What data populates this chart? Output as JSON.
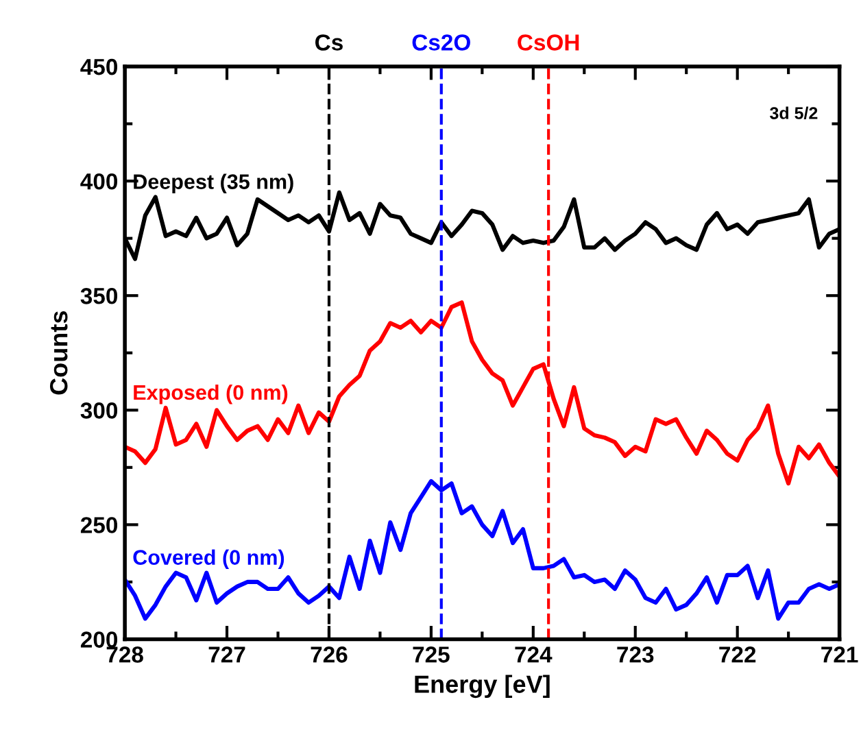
{
  "chart_data": {
    "type": "line",
    "xlabel": "Energy [eV]",
    "ylabel": "Counts",
    "x": [
      728.0,
      727.9,
      727.8,
      727.7,
      727.6,
      727.5,
      727.4,
      727.3,
      727.2,
      727.1,
      727.0,
      726.9,
      726.8,
      726.7,
      726.6,
      726.5,
      726.4,
      726.3,
      726.2,
      726.1,
      726.0,
      725.9,
      725.8,
      725.7,
      725.6,
      725.5,
      725.4,
      725.3,
      725.2,
      725.1,
      725.0,
      724.9,
      724.8,
      724.7,
      724.6,
      724.5,
      724.4,
      724.3,
      724.2,
      724.1,
      724.0,
      723.9,
      723.8,
      723.7,
      723.6,
      723.5,
      723.4,
      723.3,
      723.2,
      723.1,
      723.0,
      722.9,
      722.8,
      722.7,
      722.6,
      722.5,
      722.4,
      722.3,
      722.2,
      722.1,
      722.0,
      721.9,
      721.8,
      721.7,
      721.6,
      721.5,
      721.4,
      721.3,
      721.2,
      721.1,
      721.0
    ],
    "series": [
      {
        "name": "Deepest (35 nm)",
        "color": "#000000",
        "values": [
          375,
          366,
          385,
          393,
          376,
          378,
          376,
          384,
          375,
          377,
          384,
          372,
          377,
          392,
          389,
          386,
          383,
          385,
          382,
          385,
          378,
          395,
          383,
          386,
          377,
          390,
          385,
          384,
          377,
          375,
          373,
          382,
          376,
          381,
          387,
          386,
          381,
          370,
          376,
          373,
          374,
          373,
          374,
          380,
          392,
          371,
          371,
          375,
          370,
          374,
          377,
          382,
          379,
          373,
          375,
          372,
          370,
          381,
          386,
          379,
          381,
          377,
          382,
          383,
          384,
          385,
          386,
          392,
          371,
          377,
          379
        ]
      },
      {
        "name": "Exposed (0 nm)",
        "color": "#ff0000",
        "values": [
          284,
          282,
          277,
          283,
          301,
          285,
          287,
          294,
          284,
          300,
          293,
          287,
          291,
          293,
          287,
          296,
          290,
          302,
          290,
          299,
          295,
          306,
          311,
          315,
          326,
          330,
          338,
          336,
          339,
          334,
          339,
          336,
          345,
          347,
          330,
          322,
          316,
          313,
          302,
          310,
          318,
          320,
          305,
          293,
          310,
          292,
          289,
          288,
          286,
          280,
          284,
          282,
          296,
          294,
          296,
          288,
          281,
          291,
          287,
          281,
          278,
          287,
          292,
          302,
          281,
          268,
          284,
          279,
          285,
          277,
          271
        ]
      },
      {
        "name": "Covered (0 nm)",
        "color": "#0000ff",
        "values": [
          226,
          219,
          209,
          215,
          223,
          229,
          227,
          217,
          229,
          216,
          220,
          223,
          225,
          225,
          222,
          222,
          227,
          220,
          216,
          219,
          223,
          218,
          236,
          222,
          243,
          229,
          251,
          239,
          255,
          262,
          269,
          265,
          268,
          255,
          258,
          250,
          245,
          256,
          242,
          248,
          231,
          231,
          232,
          235,
          227,
          228,
          225,
          226,
          222,
          230,
          226,
          218,
          216,
          222,
          213,
          215,
          220,
          227,
          216,
          228,
          228,
          232,
          218,
          230,
          209,
          216,
          216,
          222,
          224,
          222,
          224
        ]
      }
    ],
    "xlim": [
      728,
      721
    ],
    "xticks": [
      728,
      727,
      726,
      725,
      724,
      723,
      722,
      721
    ],
    "ylim": [
      200,
      450
    ],
    "yticks": [
      200,
      250,
      300,
      350,
      400,
      450
    ],
    "ref_lines": [
      {
        "axis": "x",
        "value": 726,
        "label": "Cs",
        "color": "#000000",
        "line_style": "dashed"
      },
      {
        "axis": "x",
        "value": 724.9,
        "label": "Cs2O",
        "color": "#0000ff",
        "line_style": "dashed"
      },
      {
        "axis": "x",
        "value": 723.85,
        "label": "CsOH",
        "color": "#ff0000",
        "line_style": "dashed"
      }
    ],
    "annotations": [
      "3d 5/2"
    ],
    "grid": false,
    "legend": false,
    "marker": "none",
    "line_style": "solid"
  }
}
